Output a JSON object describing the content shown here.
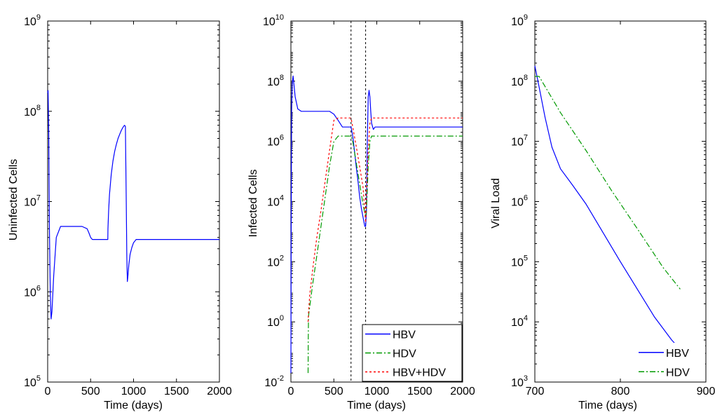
{
  "chart_data": [
    {
      "type": "line",
      "xlabel": "Time (days)",
      "ylabel": "Uninfected Cells",
      "xlim": [
        0,
        2000
      ],
      "ylim": [
        100000,
        1000000000
      ],
      "yscale": "log",
      "xticks": [
        0,
        500,
        1000,
        1500,
        2000
      ],
      "yticks": [
        {
          "value": 100000,
          "base": "10",
          "exp": "5"
        },
        {
          "value": 1000000,
          "base": "10",
          "exp": "6"
        },
        {
          "value": 10000000,
          "base": "10",
          "exp": "7"
        },
        {
          "value": 100000000,
          "base": "10",
          "exp": "8"
        },
        {
          "value": 1000000000,
          "base": "10",
          "exp": "9"
        }
      ],
      "grid": false,
      "legend": null,
      "series": [
        {
          "color": "#0000ff",
          "style": "solid",
          "x": [
            0,
            5,
            12,
            20,
            30,
            40,
            50,
            70,
            100,
            150,
            200,
            300,
            400,
            460,
            480,
            500,
            520,
            550,
            600,
            650,
            700,
            702,
            710,
            720,
            740,
            760,
            780,
            800,
            820,
            840,
            860,
            880,
            895,
            905,
            915,
            922,
            928,
            935,
            945,
            960,
            980,
            1000,
            1030,
            1060,
            1100,
            1200,
            1500,
            2000
          ],
          "y": [
            160000000,
            170000000,
            60000000,
            5000000,
            1000000,
            500000,
            600000,
            1500000,
            4000000,
            5300000,
            5300000,
            5300000,
            5300000,
            5000000,
            4500000,
            4000000,
            3800000,
            3800000,
            3800000,
            3800000,
            3800000,
            5000000,
            8000000,
            12000000,
            20000000,
            28000000,
            36000000,
            43000000,
            50000000,
            56000000,
            62000000,
            67000000,
            70000000,
            68000000,
            10000000,
            2500000,
            1300000,
            1500000,
            2000000,
            2600000,
            3100000,
            3500000,
            3800000,
            3800000,
            3800000,
            3800000,
            3800000,
            3800000
          ]
        }
      ]
    },
    {
      "type": "line",
      "xlabel": "Time (days)",
      "ylabel": "Infected Cells",
      "xlim": [
        0,
        2000
      ],
      "ylim": [
        0.01,
        10000000000
      ],
      "yscale": "log",
      "xticks": [
        0,
        500,
        1000,
        1500,
        2000
      ],
      "yticks": [
        {
          "value": 0.01,
          "base": "10",
          "exp": "-2"
        },
        {
          "value": 1,
          "base": "10",
          "exp": "0"
        },
        {
          "value": 100,
          "base": "10",
          "exp": "2"
        },
        {
          "value": 10000,
          "base": "10",
          "exp": "4"
        },
        {
          "value": 1000000,
          "base": "10",
          "exp": "6"
        },
        {
          "value": 100000000,
          "base": "10",
          "exp": "8"
        },
        {
          "value": 10000000000,
          "base": "10",
          "exp": "10"
        }
      ],
      "vlines": [
        700,
        870
      ],
      "grid": false,
      "legend": "bottom-right",
      "series": [
        {
          "name": "HBV",
          "color": "#0000ff",
          "style": "solid",
          "x": [
            0,
            3,
            8,
            15,
            25,
            35,
            50,
            80,
            120,
            200,
            300,
            400,
            450,
            500,
            550,
            600,
            650,
            700,
            720,
            740,
            760,
            780,
            800,
            820,
            840,
            860,
            870,
            880,
            890,
            900,
            910,
            920,
            930,
            940,
            960,
            980,
            1000,
            1100,
            1500,
            2000
          ],
          "y": [
            0.02,
            1000,
            10000000,
            80000000,
            150000000,
            80000000,
            30000000,
            12000000,
            10000000,
            10000000,
            10000000,
            10000000,
            10000000,
            8000000,
            5000000,
            3000000,
            3000000,
            3000000,
            1500000,
            500000,
            150000,
            50000,
            15000,
            6000,
            3000,
            1500,
            1500,
            5000,
            1000000,
            30000000,
            50000000,
            30000000,
            10000000,
            4000000,
            2500000,
            3000000,
            3000000,
            3000000,
            3000000,
            3000000
          ]
        },
        {
          "name": "HDV",
          "color": "#009900",
          "style": "dashdot",
          "x": [
            200,
            202,
            205,
            210,
            250,
            300,
            350,
            400,
            450,
            500,
            550,
            600,
            650,
            700,
            720,
            760,
            800,
            840,
            870,
            880,
            900,
            920,
            940,
            960,
            1000,
            1200,
            1500,
            2000
          ],
          "y": [
            0.02,
            0.2,
            1.5,
            2,
            15,
            150,
            1500,
            15000,
            150000,
            1000000,
            1500000,
            1500000,
            1500000,
            1500000,
            1000000,
            200000,
            40000,
            8000,
            3000,
            5000,
            150000,
            1000000,
            1500000,
            1500000,
            1500000,
            1500000,
            1500000,
            1500000
          ]
        },
        {
          "name": "HBV+HDV",
          "color": "#ff0000",
          "style": "dotted",
          "x": [
            200,
            205,
            220,
            260,
            300,
            350,
            400,
            450,
            500,
            550,
            600,
            650,
            700,
            720,
            760,
            800,
            840,
            870,
            880,
            900,
            920,
            940,
            960,
            1000,
            1200,
            1500,
            2000
          ],
          "y": [
            1,
            2,
            8,
            80,
            600,
            5000,
            50000,
            500000,
            5000000,
            6000000,
            6000000,
            6000000,
            6000000,
            3000000,
            700000,
            150000,
            30000,
            2000,
            20000,
            500000,
            4000000,
            6000000,
            6000000,
            6000000,
            6000000,
            6000000,
            6000000
          ]
        }
      ]
    },
    {
      "type": "line",
      "xlabel": "Time (days)",
      "ylabel": "Viral Load",
      "xlim": [
        700,
        900
      ],
      "ylim": [
        1000,
        1000000000
      ],
      "yscale": "log",
      "xticks": [
        700,
        800,
        900
      ],
      "yticks": [
        {
          "value": 1000,
          "base": "10",
          "exp": "3"
        },
        {
          "value": 10000,
          "base": "10",
          "exp": "4"
        },
        {
          "value": 100000,
          "base": "10",
          "exp": "5"
        },
        {
          "value": 1000000,
          "base": "10",
          "exp": "6"
        },
        {
          "value": 10000000,
          "base": "10",
          "exp": "7"
        },
        {
          "value": 100000000,
          "base": "10",
          "exp": "8"
        },
        {
          "value": 1000000000,
          "base": "10",
          "exp": "9"
        }
      ],
      "grid": false,
      "legend": "bottom-right",
      "series": [
        {
          "name": "HBV",
          "color": "#0000ff",
          "style": "solid",
          "x": [
            700,
            705,
            712,
            720,
            730,
            745,
            760,
            800,
            840,
            860,
            870
          ],
          "y": [
            180000000,
            80000000,
            25000000,
            8000000,
            3500000,
            1800000,
            900000,
            100000,
            12000,
            5000,
            3500
          ]
        },
        {
          "name": "HDV",
          "color": "#009900",
          "style": "dashdot",
          "x": [
            700,
            705,
            730,
            760,
            790,
            820,
            850,
            870
          ],
          "y": [
            120000000,
            120000000,
            30000000,
            7000000,
            1500000,
            350000,
            80000,
            35000
          ]
        }
      ]
    }
  ]
}
